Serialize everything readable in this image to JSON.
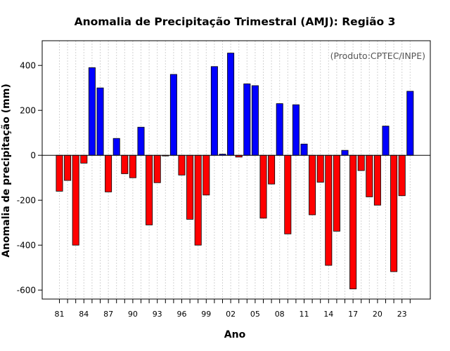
{
  "chart_data": {
    "type": "bar",
    "title": "Anomalia de Precipitação Trimestral (AMJ): Região 3",
    "xlabel": "Ano",
    "ylabel": "Anomalia de precipitação (mm)",
    "credit": "(Produto:CPTEC/INPE)",
    "ylim": [
      -640,
      510
    ],
    "yticks": [
      -600,
      -400,
      -200,
      0,
      200,
      400
    ],
    "categories": [
      1981,
      1982,
      1983,
      1984,
      1985,
      1986,
      1987,
      1988,
      1989,
      1990,
      1991,
      1992,
      1993,
      1994,
      1995,
      1996,
      1997,
      1998,
      1999,
      2000,
      2001,
      2002,
      2003,
      2004,
      2005,
      2006,
      2007,
      2008,
      2009,
      2010,
      2011,
      2012,
      2013,
      2014,
      2015,
      2016,
      2017,
      2018,
      2019,
      2020,
      2021,
      2022,
      2023,
      2024
    ],
    "values": [
      -160,
      -112,
      -400,
      -35,
      390,
      300,
      -163,
      75,
      -82,
      -100,
      125,
      -310,
      -122,
      -3,
      360,
      -88,
      -285,
      -400,
      -177,
      395,
      5,
      455,
      -8,
      318,
      310,
      -280,
      -128,
      230,
      -350,
      225,
      50,
      -265,
      -120,
      -490,
      -338,
      22,
      -595,
      -68,
      -185,
      -222,
      130,
      -518,
      -180,
      285
    ],
    "xtick_labels": [
      "81",
      "84",
      "87",
      "90",
      "93",
      "96",
      "99",
      "02",
      "05",
      "08",
      "11",
      "14",
      "17",
      "20",
      "23"
    ],
    "xtick_index": [
      0,
      3,
      6,
      9,
      12,
      15,
      18,
      21,
      24,
      27,
      30,
      33,
      36,
      39,
      42
    ],
    "colors": {
      "positive": "#0000ff",
      "negative": "#ff0000",
      "grid": "#d3d3d3",
      "zero_line": "#000000",
      "border": "#000000"
    },
    "grid": true
  }
}
